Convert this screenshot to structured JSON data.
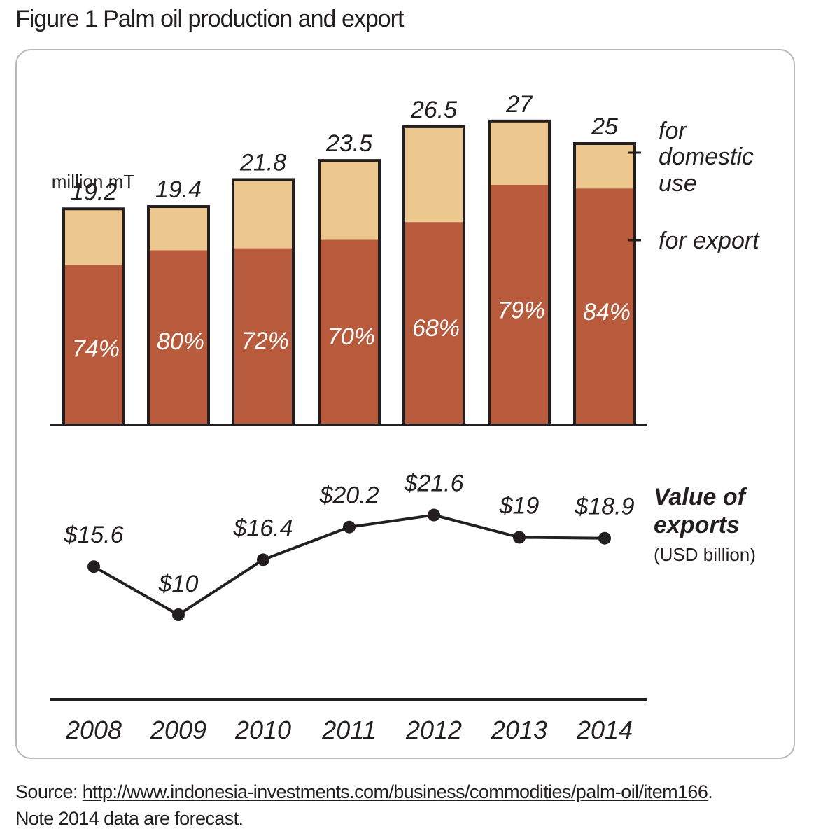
{
  "figure_title": "Figure 1 Palm oil production and export",
  "colors": {
    "export": "#b85a3c",
    "domestic": "#edc88e",
    "outline": "#231f20",
    "pct_text": "#ffffff"
  },
  "chart_data": [
    {
      "type": "bar",
      "stacked": true,
      "categories": [
        "2008",
        "2009",
        "2010",
        "2011",
        "2012",
        "2013",
        "2014"
      ],
      "totals": [
        19.2,
        19.4,
        21.8,
        23.5,
        26.5,
        27,
        25
      ],
      "total_labels": [
        "19.2",
        "19.4",
        "21.8",
        "23.5",
        "26.5",
        "27",
        "25"
      ],
      "unit_label": "million mT",
      "export_share_pct": [
        74,
        80,
        72,
        70,
        68,
        79,
        84
      ],
      "pct_labels": [
        "74%",
        "80%",
        "72%",
        "70%",
        "68%",
        "79%",
        "84%"
      ],
      "legend": {
        "domestic": [
          "for",
          "domestic",
          "use"
        ],
        "export": "for export"
      },
      "legend_position": "right"
    },
    {
      "type": "line",
      "categories": [
        "2008",
        "2009",
        "2010",
        "2011",
        "2012",
        "2013",
        "2014"
      ],
      "values": [
        15.6,
        10,
        16.4,
        20.2,
        21.6,
        19,
        18.9
      ],
      "value_labels": [
        "$15.6",
        "$10",
        "$16.4",
        "$20.2",
        "$21.6",
        "$19",
        "$18.9"
      ],
      "label": [
        "Value of",
        "exports"
      ],
      "unit_label": "(USD billion)"
    }
  ],
  "source": {
    "prefix": "Source: ",
    "url": "http://www.indonesia-investments.com/business/commodities/palm-oil/item166",
    "suffix": ".",
    "note": "Note 2014 data are forecast."
  }
}
